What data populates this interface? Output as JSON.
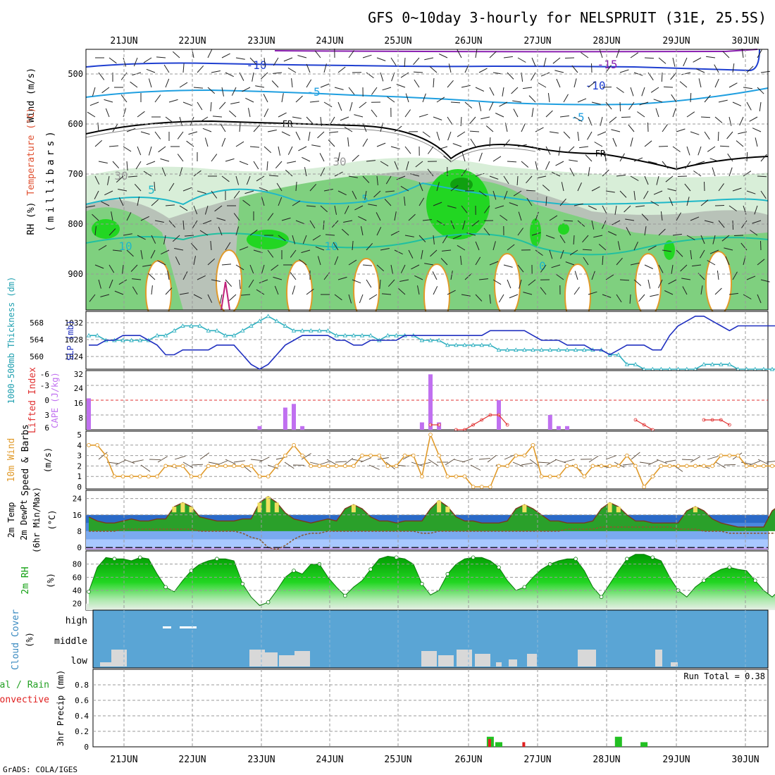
{
  "title": "GFS 0~10day 3-hourly for NELSPRUIT (31E, 25.5S)",
  "credit": "GrADS: COLA/IGES",
  "dates": [
    "21JUN",
    "22JUN",
    "23JUN",
    "24JUN",
    "25JUN",
    "26JUN",
    "27JUN",
    "28JUN",
    "29JUN",
    "30JUN"
  ],
  "colors": {
    "grid": "#9a9a9a",
    "green_light": "#d8eed8",
    "green_mid": "#7fd07f",
    "green_bright": "#22d622",
    "gray_shade": "#b8c2b8",
    "temp_purple": "#8a1fb0",
    "temp_blue": "#1f3fd0",
    "temp_lightblue": "#1f9fe0",
    "temp_cyan": "#1fb8c8",
    "temp_orange": "#e09a2a",
    "freezing": "#000000",
    "slp_line": "#2030c0",
    "thickness_line": "#30b0c0",
    "cape_bar": "#c070f0",
    "li_line": "#e03030",
    "wind_line": "#e09a2a",
    "temp_fill": "#2a9a2a",
    "dewpt_line": "#8a5a30",
    "rh_fill": "#10c010",
    "cloud_bg": "#5aa5d5",
    "cloud_fill": "#d8d8d8",
    "precip_total": "#22c022",
    "precip_conv": "#e02020"
  },
  "charts": {
    "upper_air": {
      "ylabel_wind": "Wind (m/s)",
      "ylabel_temp": "Temperature (°C)",
      "ylabel_rh": "RH (%)",
      "ylabel_units": "(millibars)",
      "y_ticks": [
        "500",
        "600",
        "700",
        "800",
        "900"
      ],
      "contour_labels": [
        "-15",
        "-10",
        "-10",
        "-5",
        "-5",
        "FR",
        "FR",
        "5",
        "5",
        "10",
        "10",
        "0",
        "30",
        "30"
      ]
    },
    "slp": {
      "ylabel_left": "1000-500mb Thickness (dm)",
      "ylabel_right": "SLP (mb)",
      "y_ticks_left": [
        "568",
        "564",
        "560"
      ],
      "y_ticks_right": [
        "1032",
        "1028",
        "1024"
      ]
    },
    "cape": {
      "ylabel_left": "Lifted Index",
      "ylabel_right": "CAPE (J/kg)",
      "y_ticks_left": [
        "-6",
        "-3",
        "0",
        "3",
        "6"
      ],
      "y_ticks_right": [
        "32",
        "24",
        "16",
        "8"
      ]
    },
    "wind": {
      "ylabel_a": "10m Wind",
      "ylabel_b": "Speed & Barbs",
      "ylabel_units": "(m/s)",
      "y_ticks": [
        "5",
        "4",
        "3",
        "2",
        "1",
        "0"
      ]
    },
    "temp": {
      "ylabel_a": "2m Temp",
      "ylabel_b": "2m DewPt",
      "ylabel_c": "(6hr Min/Max)",
      "ylabel_units": "(°C)",
      "y_ticks": [
        "24",
        "16",
        "8",
        "0"
      ]
    },
    "rh": {
      "ylabel": "2m RH",
      "ylabel_units": "(%)",
      "y_ticks": [
        "80",
        "60",
        "40",
        "20"
      ]
    },
    "cloud": {
      "ylabel": "Cloud Cover",
      "ylabel_units": "(%)",
      "levels": [
        "high",
        "middle",
        "low"
      ]
    },
    "precip": {
      "ylabel_a": "Total / Rain",
      "ylabel_b": "Convective",
      "ylabel_units": "3hr Precip (mm)",
      "run_total": "Run Total = 0.38",
      "y_ticks": [
        "0.8",
        "0.6",
        "0.4",
        "0.2",
        "0"
      ]
    }
  },
  "chart_data": [
    {
      "type": "line",
      "title": "SLP (mb) and 1000-500mb Thickness (dm)",
      "x_start": "21JUN",
      "x_step_hours": 3,
      "series": [
        {
          "name": "SLP (mb)",
          "values": [
            1027,
            1027,
            1028,
            1028,
            1029,
            1029,
            1029,
            1028,
            1027,
            1025,
            1025,
            1026,
            1026,
            1026,
            1026,
            1027,
            1027,
            1027,
            1025,
            1023,
            1022,
            1023,
            1025,
            1027,
            1028,
            1029,
            1029,
            1029,
            1029,
            1028,
            1028,
            1027,
            1027,
            1028,
            1028,
            1028,
            1028,
            1029,
            1029,
            1029,
            1029,
            1029,
            1029,
            1029,
            1029,
            1029,
            1029,
            1030,
            1030,
            1030,
            1030,
            1030,
            1029,
            1028,
            1028,
            1028,
            1027,
            1027,
            1027,
            1026,
            1026,
            1025,
            1026,
            1027,
            1027,
            1027,
            1026,
            1026,
            1029,
            1031,
            1032,
            1033,
            1033,
            1032,
            1031,
            1030,
            1031,
            1031,
            1031,
            1031,
            1031,
            1031,
            1030,
            1028,
            1026,
            1026,
            1027,
            1027,
            1027,
            1025,
            1026,
            1026,
            1027,
            1028,
            1026,
            1023,
            1025,
            1026,
            1026,
            1026,
            1026
          ]
        },
        {
          "name": "1000-500mb Thickness (dm)",
          "values": [
            565,
            565,
            564,
            564,
            564,
            564,
            564,
            564,
            565,
            565,
            566,
            567,
            567,
            567,
            566,
            566,
            565,
            565,
            566,
            567,
            568,
            569,
            568,
            567,
            566,
            566,
            566,
            566,
            566,
            565,
            565,
            565,
            565,
            565,
            564,
            565,
            565,
            565,
            565,
            564,
            564,
            564,
            563,
            563,
            563,
            563,
            563,
            563,
            562,
            562,
            562,
            562,
            562,
            562,
            562,
            562,
            562,
            562,
            562,
            562,
            562,
            561,
            561,
            559,
            559,
            558,
            558,
            558,
            558,
            558,
            558,
            558,
            559,
            559,
            559,
            559,
            558,
            558,
            558,
            558,
            558,
            558,
            558,
            558,
            559,
            559,
            560,
            559,
            559,
            559,
            559,
            559,
            559,
            559,
            559,
            559,
            559,
            558,
            558,
            559,
            559
          ]
        }
      ],
      "ylim_left": [
        558,
        570
      ],
      "ylim_right": [
        1022,
        1034
      ],
      "grid": true
    },
    {
      "type": "bar",
      "title": "Lifted Index / CAPE (J/kg)",
      "x_start": "21JUN",
      "x_step_hours": 3,
      "series": [
        {
          "name": "CAPE (J/kg)",
          "bars": [
            [
              0,
              17
            ],
            [
              20,
              2
            ],
            [
              23,
              12
            ],
            [
              24,
              14
            ],
            [
              25,
              2
            ],
            [
              39,
              4
            ],
            [
              40,
              30
            ],
            [
              41,
              4
            ],
            [
              48,
              16
            ],
            [
              54,
              8
            ],
            [
              55,
              2
            ],
            [
              56,
              2
            ]
          ]
        },
        {
          "name": "Lifted Index",
          "points": [
            [
              40,
              5
            ],
            [
              41,
              5
            ],
            [
              43,
              6
            ],
            [
              44,
              6
            ],
            [
              45,
              5
            ],
            [
              46,
              4
            ],
            [
              47,
              3
            ],
            [
              48,
              3
            ],
            [
              49,
              5
            ],
            [
              64,
              4
            ],
            [
              65,
              5
            ],
            [
              66,
              6
            ],
            [
              72,
              4
            ],
            [
              73,
              4
            ],
            [
              74,
              4
            ],
            [
              75,
              5
            ]
          ]
        }
      ],
      "ylim_left": [
        -6,
        6
      ],
      "ylim_right": [
        0,
        32
      ],
      "grid": true
    },
    {
      "type": "line",
      "title": "10m Wind Speed (m/s)",
      "x_start": "21JUN",
      "x_step_hours": 3,
      "series": [
        {
          "name": "Speed",
          "values": [
            4,
            4,
            3,
            1,
            1,
            1,
            1,
            1,
            1,
            2,
            2,
            2,
            1,
            1,
            2,
            2,
            2,
            2,
            2,
            2,
            1,
            1,
            2,
            3,
            4,
            3,
            2,
            2,
            2,
            2,
            2,
            2,
            3,
            3,
            3,
            2,
            2,
            3,
            3,
            1,
            5,
            3,
            1,
            1,
            1,
            0,
            0,
            0,
            2,
            2,
            3,
            3,
            4,
            1,
            1,
            1,
            2,
            2,
            1,
            2,
            2,
            2,
            2,
            3,
            2,
            0,
            1,
            2,
            2,
            2,
            2,
            2,
            2,
            2,
            3,
            3,
            3,
            2,
            2,
            2,
            2,
            2,
            3,
            3,
            3,
            2,
            2,
            2,
            2,
            2,
            1,
            1,
            2,
            2,
            3,
            3,
            2,
            2,
            2,
            2,
            1
          ]
        }
      ],
      "ylim": [
        0,
        5
      ],
      "grid": true
    },
    {
      "type": "area",
      "title": "2m Temp / 2m DewPt (°C)",
      "x_start": "21JUN",
      "x_step_hours": 3,
      "series": [
        {
          "name": "2m Temp",
          "values": [
            15,
            13,
            12,
            12,
            13,
            14,
            13,
            13,
            14,
            14,
            20,
            22,
            20,
            15,
            14,
            13,
            13,
            13,
            14,
            14,
            22,
            25,
            22,
            17,
            14,
            13,
            12,
            13,
            14,
            13,
            19,
            21,
            19,
            15,
            13,
            13,
            12,
            13,
            13,
            13,
            19,
            23,
            20,
            15,
            13,
            13,
            12,
            12,
            12,
            13,
            19,
            21,
            19,
            16,
            13,
            13,
            12,
            12,
            12,
            13,
            19,
            22,
            20,
            16,
            13,
            13,
            12,
            12,
            12,
            12,
            18,
            20,
            18,
            14,
            12,
            11,
            10,
            10,
            10,
            10,
            18,
            21,
            19,
            14,
            12,
            11,
            10,
            10,
            10,
            10,
            18,
            21,
            19,
            13,
            11,
            9,
            8,
            8,
            8,
            8,
            9
          ]
        },
        {
          "name": "2m DewPt",
          "values": [
            8,
            8,
            8,
            8,
            9,
            9,
            9,
            9,
            9,
            9,
            9,
            9,
            9,
            8,
            8,
            8,
            8,
            8,
            7,
            5,
            4,
            0,
            -1,
            1,
            4,
            6,
            7,
            7,
            8,
            8,
            8,
            8,
            8,
            8,
            8,
            8,
            8,
            8,
            8,
            7,
            7,
            8,
            8,
            8,
            8,
            8,
            8,
            8,
            8,
            8,
            8,
            8,
            8,
            8,
            8,
            8,
            9,
            9,
            9,
            9,
            10,
            10,
            10,
            10,
            10,
            10,
            10,
            10,
            10,
            9,
            9,
            9,
            8,
            8,
            8,
            7,
            7,
            7,
            7,
            7,
            7,
            7,
            7,
            7,
            7,
            6,
            6,
            6,
            6,
            6,
            6,
            6,
            6,
            6,
            6,
            6,
            3,
            4,
            5,
            5,
            6
          ]
        }
      ],
      "ylim": [
        -1,
        28
      ],
      "grid": true
    },
    {
      "type": "area",
      "title": "2m RH (%)",
      "x_start": "21JUN",
      "x_step_hours": 3,
      "series": [
        {
          "name": "2m RH",
          "values": [
            38,
            75,
            90,
            88,
            88,
            85,
            90,
            88,
            65,
            45,
            38,
            55,
            70,
            80,
            85,
            88,
            88,
            85,
            50,
            30,
            17,
            22,
            40,
            60,
            70,
            65,
            80,
            80,
            60,
            45,
            32,
            45,
            55,
            72,
            88,
            92,
            90,
            88,
            80,
            50,
            33,
            40,
            65,
            80,
            88,
            90,
            90,
            85,
            75,
            55,
            40,
            45,
            60,
            72,
            80,
            85,
            88,
            88,
            70,
            45,
            30,
            50,
            70,
            88,
            95,
            95,
            90,
            85,
            60,
            40,
            30,
            45,
            55,
            65,
            72,
            75,
            72,
            70,
            55,
            40,
            30,
            42,
            60,
            72,
            80,
            85,
            95,
            80,
            55,
            40,
            25,
            40,
            60,
            70,
            75,
            80,
            88,
            85,
            65,
            45,
            35
          ]
        }
      ],
      "ylim": [
        10,
        100
      ],
      "grid": true
    },
    {
      "type": "bar",
      "title": "3hr Precip (mm)",
      "x_start": "21JUN",
      "x_step_hours": 3,
      "series": [
        {
          "name": "Total / Rain",
          "bars": [
            [
              47,
              0.13
            ],
            [
              48,
              0.06
            ],
            [
              62,
              0.13
            ],
            [
              65,
              0.06
            ]
          ]
        },
        {
          "name": "Convective",
          "bars": [
            [
              47,
              0.1
            ],
            [
              51,
              0.06
            ]
          ]
        }
      ],
      "ylim": [
        0,
        1
      ],
      "grid": true
    }
  ]
}
